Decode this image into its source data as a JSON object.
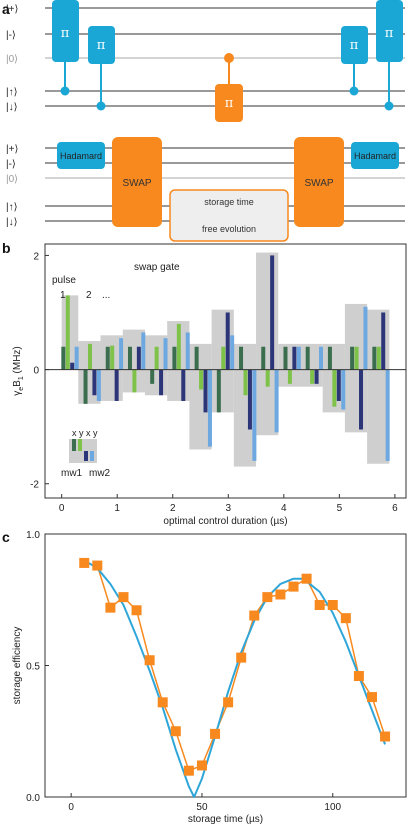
{
  "panels": {
    "a": "a",
    "b": "b",
    "c": "c"
  },
  "circuit": {
    "state_labels": [
      "|+⟩",
      "|-⟩",
      "|0⟩",
      "|↑⟩",
      "|↓⟩"
    ],
    "pi_label": "π",
    "hadamard_label": "Hadamard",
    "swap_label": "SWAP",
    "storage_time_label": "storage time",
    "free_evolution_label": "free evolution"
  },
  "colors": {
    "blue": "#1aa7d6",
    "orange": "#f7891f",
    "grey_box": "#cfcfcf",
    "green_dark": "#3a6e4e",
    "green_light": "#7fc24a",
    "navy": "#2c3577",
    "light_blue": "#6ea8e0",
    "line_blue": "#2ea6d9"
  },
  "chart_data": [
    {
      "type": "bar",
      "xlabel": "optimal control duration (µs)",
      "ylabel": "γeB1 (MHz)",
      "ylabel_main": "γ",
      "ylabel_sub_e": "e",
      "ylabel_B": "B",
      "ylabel_sub_1": "1",
      "ylabel_unit": " (MHz)",
      "xlim": [
        -0.3,
        6.2
      ],
      "ylim": [
        -2.25,
        2.2
      ],
      "xticks": [
        0,
        1,
        2,
        3,
        4,
        5,
        6
      ],
      "yticks": [
        -2,
        0,
        2
      ],
      "annotations": {
        "swap_gate": "swap gate",
        "pulse": "pulse",
        "pulse_1": "1",
        "pulse_2": "2",
        "pulse_dots": "...",
        "legend_xyxy": "x y x y",
        "legend_mw1": "mw1",
        "legend_mw2": "mw2"
      },
      "series_order": [
        "mw1 x",
        "mw1 y",
        "mw2 x",
        "mw2 y"
      ],
      "pulses": [
        {
          "t": 0.15,
          "values": [
            0.4,
            1.3,
            0.12,
            0.4
          ]
        },
        {
          "t": 0.55,
          "values": [
            -0.6,
            0.45,
            -0.45,
            -0.55
          ]
        },
        {
          "t": 0.95,
          "values": [
            0.4,
            0.42,
            -0.55,
            0.55
          ]
        },
        {
          "t": 1.35,
          "values": [
            0.4,
            -0.4,
            0.4,
            0.65
          ]
        },
        {
          "t": 1.75,
          "values": [
            -0.25,
            0.4,
            -0.45,
            0.55
          ]
        },
        {
          "t": 2.15,
          "values": [
            0.4,
            0.8,
            -0.55,
            0.65
          ]
        },
        {
          "t": 2.55,
          "values": [
            0.4,
            -0.35,
            -0.75,
            -1.35
          ]
        },
        {
          "t": 2.95,
          "values": [
            -0.75,
            0.4,
            1.0,
            0.6
          ]
        },
        {
          "t": 3.35,
          "values": [
            0.4,
            -0.45,
            -1.05,
            -1.6
          ]
        },
        {
          "t": 3.75,
          "values": [
            0.4,
            -0.3,
            2.0,
            -1.1
          ]
        },
        {
          "t": 4.15,
          "values": [
            0.4,
            -0.25,
            0.4,
            0.4
          ]
        },
        {
          "t": 4.55,
          "values": [
            0.4,
            -0.25,
            -0.25,
            0.4
          ]
        },
        {
          "t": 4.95,
          "values": [
            0.4,
            -0.65,
            -0.55,
            -0.7
          ]
        },
        {
          "t": 5.35,
          "values": [
            0.4,
            0.4,
            -1.05,
            1.1
          ]
        },
        {
          "t": 5.75,
          "values": [
            0.4,
            0.4,
            1.0,
            -1.6
          ]
        }
      ],
      "envelope_segments": [
        {
          "start": 0.0,
          "end": 0.3,
          "low": 0.0,
          "high": 1.3
        },
        {
          "start": 0.3,
          "end": 0.7,
          "low": -0.6,
          "high": 0.5
        },
        {
          "start": 0.7,
          "end": 1.1,
          "low": -0.55,
          "high": 0.6
        },
        {
          "start": 1.1,
          "end": 1.5,
          "low": -0.4,
          "high": 0.7
        },
        {
          "start": 1.5,
          "end": 1.9,
          "low": -0.45,
          "high": 0.6
        },
        {
          "start": 1.9,
          "end": 2.3,
          "low": -0.55,
          "high": 0.85
        },
        {
          "start": 2.3,
          "end": 2.7,
          "low": -1.4,
          "high": 0.45
        },
        {
          "start": 2.7,
          "end": 3.1,
          "low": -0.75,
          "high": 1.05
        },
        {
          "start": 3.1,
          "end": 3.5,
          "low": -1.7,
          "high": 0.45
        },
        {
          "start": 3.5,
          "end": 3.9,
          "low": -1.15,
          "high": 2.05
        },
        {
          "start": 3.9,
          "end": 4.3,
          "low": -0.3,
          "high": 0.45
        },
        {
          "start": 4.3,
          "end": 4.7,
          "low": -0.3,
          "high": 0.45
        },
        {
          "start": 4.7,
          "end": 5.1,
          "low": -0.75,
          "high": 0.45
        },
        {
          "start": 5.1,
          "end": 5.5,
          "low": -1.1,
          "high": 1.15
        },
        {
          "start": 5.5,
          "end": 5.9,
          "low": -1.65,
          "high": 1.05
        }
      ]
    },
    {
      "type": "line",
      "xlabel": "storage time (µs)",
      "ylabel": "storage efficiency",
      "xlim": [
        -10,
        128
      ],
      "ylim": [
        0.0,
        1.0
      ],
      "xticks": [
        0,
        50,
        100
      ],
      "yticks": [
        0.0,
        0.5,
        1.0
      ],
      "ytick_labels": [
        "0.0",
        "0.5",
        "1.0"
      ],
      "series": [
        {
          "name": "data",
          "x": [
            5,
            10,
            15,
            20,
            25,
            30,
            35,
            40,
            45,
            50,
            55,
            60,
            65,
            70,
            75,
            80,
            85,
            90,
            95,
            100,
            105,
            110,
            115,
            120
          ],
          "y": [
            0.89,
            0.88,
            0.72,
            0.76,
            0.71,
            0.52,
            0.36,
            0.25,
            0.1,
            0.12,
            0.24,
            0.36,
            0.53,
            0.69,
            0.76,
            0.77,
            0.8,
            0.83,
            0.73,
            0.73,
            0.68,
            0.46,
            0.38,
            0.23
          ]
        },
        {
          "name": "fit",
          "x": [
            5,
            10,
            15,
            20,
            25,
            30,
            35,
            40,
            45,
            47,
            50,
            55,
            60,
            65,
            70,
            75,
            80,
            85,
            88,
            90,
            95,
            100,
            105,
            110,
            115,
            120
          ],
          "y": [
            0.9,
            0.87,
            0.81,
            0.73,
            0.61,
            0.48,
            0.34,
            0.18,
            0.04,
            0.0,
            0.07,
            0.23,
            0.4,
            0.55,
            0.67,
            0.76,
            0.81,
            0.83,
            0.83,
            0.82,
            0.78,
            0.7,
            0.59,
            0.46,
            0.33,
            0.2
          ]
        }
      ]
    }
  ]
}
